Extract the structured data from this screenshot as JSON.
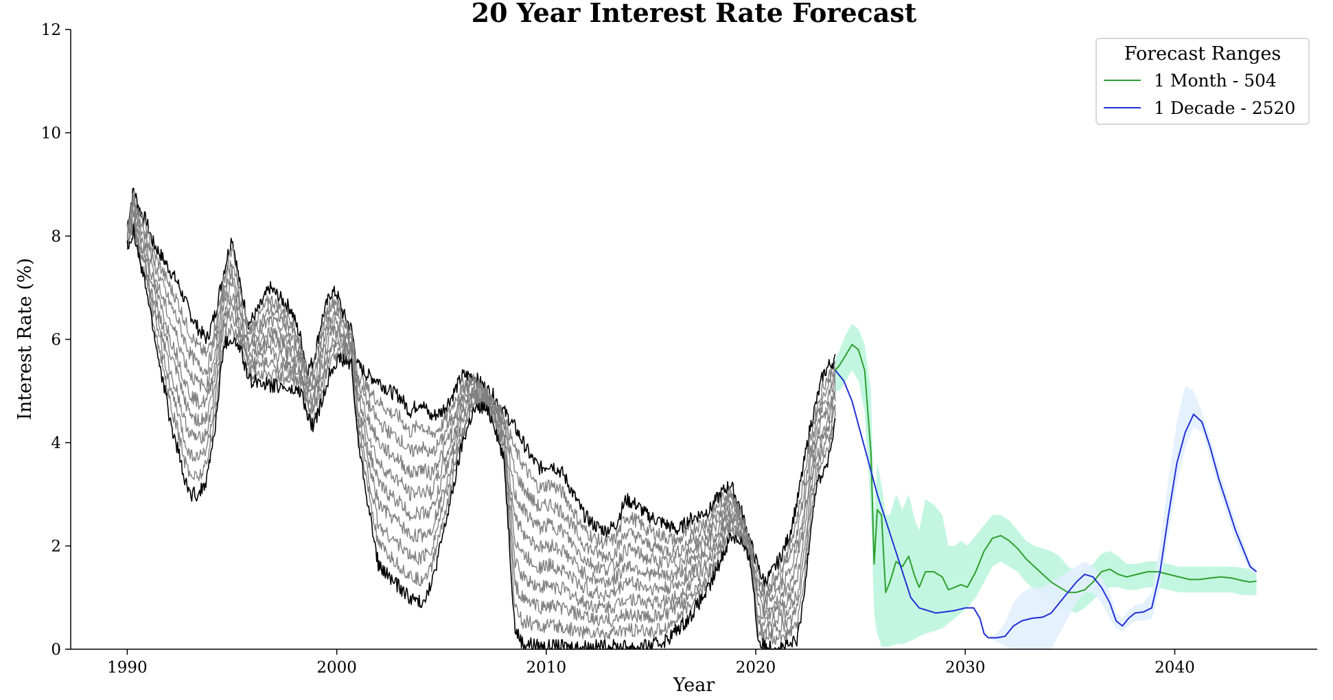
{
  "chart_data": {
    "type": "line",
    "title": "20 Year Interest Rate Forecast",
    "xlabel": "Year",
    "ylabel": "Interest Rate (%)",
    "xlim": [
      1987.3,
      2046.8
    ],
    "ylim": [
      0,
      12
    ],
    "xticks": [
      1990,
      2000,
      2010,
      2020,
      2030,
      2040
    ],
    "yticks": [
      0,
      2,
      4,
      6,
      8,
      10,
      12
    ],
    "grid": false,
    "legend": {
      "title": "Forecast Ranges",
      "placement": "top-right",
      "entries": [
        {
          "label": "1 Month - 504",
          "color": "#2ca02c"
        },
        {
          "label": "1 Decade - 2520",
          "color": "#1f2ed6"
        }
      ]
    },
    "historical": {
      "description_color_dark": "#000000",
      "description_color_light": "#808080",
      "x": [
        1990.0,
        1990.3,
        1990.6,
        1990.9,
        1991.2,
        1991.5,
        1991.8,
        1992.1,
        1992.4,
        1992.7,
        1993.0,
        1993.4,
        1993.8,
        1994.2,
        1994.6,
        1995.0,
        1995.4,
        1995.8,
        1996.3,
        1996.8,
        1997.3,
        1997.8,
        1998.3,
        1998.6,
        1998.9,
        1999.3,
        1999.7,
        2000.0,
        2000.3,
        2000.7,
        2001.0,
        2001.5,
        2002.0,
        2002.5,
        2003.0,
        2003.5,
        2004.0,
        2004.5,
        2005.0,
        2005.5,
        2006.0,
        2006.5,
        2007.0,
        2007.5,
        2008.0,
        2008.5,
        2008.9,
        2009.3,
        2009.7,
        2010.2,
        2010.8,
        2011.3,
        2011.8,
        2012.3,
        2012.8,
        2013.3,
        2013.8,
        2014.3,
        2014.8,
        2015.3,
        2015.8,
        2016.3,
        2016.8,
        2017.3,
        2017.8,
        2018.3,
        2018.8,
        2019.3,
        2019.8,
        2020.1,
        2020.4,
        2020.8,
        2021.2,
        2021.6,
        2022.0,
        2022.3,
        2022.6,
        2022.9,
        2023.2,
        2023.5,
        2023.8
      ],
      "upper": [
        8.2,
        8.9,
        8.5,
        8.3,
        7.9,
        7.7,
        7.5,
        7.3,
        7.1,
        6.8,
        6.5,
        6.2,
        6.0,
        6.5,
        7.3,
        8.0,
        7.0,
        6.3,
        6.6,
        7.0,
        6.8,
        6.6,
        6.0,
        5.4,
        5.6,
        6.4,
        6.9,
        6.9,
        6.5,
        6.2,
        5.5,
        5.3,
        5.2,
        5.0,
        4.9,
        4.6,
        4.8,
        4.5,
        4.6,
        4.9,
        5.3,
        5.3,
        5.1,
        4.9,
        4.6,
        4.3,
        4.0,
        3.7,
        3.5,
        3.6,
        3.4,
        3.0,
        2.6,
        2.4,
        2.3,
        2.4,
        2.9,
        2.8,
        2.6,
        2.5,
        2.4,
        2.3,
        2.5,
        2.6,
        2.7,
        3.0,
        3.2,
        2.7,
        2.0,
        1.6,
        1.3,
        1.5,
        1.8,
        2.2,
        2.9,
        3.6,
        4.3,
        4.8,
        5.3,
        5.5,
        5.6
      ],
      "lower": [
        7.8,
        8.1,
        7.5,
        7.0,
        6.3,
        5.6,
        5.0,
        4.3,
        3.9,
        3.3,
        3.0,
        3.0,
        3.3,
        4.3,
        5.9,
        6.0,
        5.8,
        5.2,
        5.2,
        5.1,
        5.1,
        5.0,
        5.0,
        4.5,
        4.3,
        4.8,
        5.4,
        5.6,
        5.6,
        5.5,
        4.1,
        2.8,
        1.6,
        1.4,
        1.2,
        1.0,
        0.9,
        1.2,
        2.1,
        3.0,
        4.0,
        4.6,
        4.7,
        4.4,
        3.6,
        0.4,
        0.1,
        0.1,
        0.05,
        0.05,
        0.05,
        0.05,
        0.05,
        0.05,
        0.05,
        0.05,
        0.05,
        0.05,
        0.05,
        0.1,
        0.2,
        0.4,
        0.6,
        0.9,
        1.2,
        1.7,
        2.2,
        2.1,
        1.6,
        0.2,
        0.05,
        0.05,
        0.05,
        0.05,
        0.2,
        1.0,
        2.3,
        3.2,
        3.4,
        3.7,
        4.4
      ]
    },
    "series": [
      {
        "name": "1 Month - 504",
        "color": "#2ca02c",
        "band_color": "#b8f5da",
        "x": [
          2023.8,
          2024.0,
          2024.3,
          2024.6,
          2024.9,
          2025.2,
          2025.5,
          2025.65,
          2025.8,
          2026.0,
          2026.2,
          2026.4,
          2026.7,
          2027.0,
          2027.3,
          2027.6,
          2027.8,
          2028.1,
          2028.5,
          2028.9,
          2029.2,
          2029.5,
          2029.8,
          2030.1,
          2030.5,
          2030.9,
          2031.3,
          2031.7,
          2032.1,
          2032.5,
          2032.9,
          2033.3,
          2033.7,
          2034.1,
          2034.5,
          2034.9,
          2035.3,
          2035.7,
          2036.1,
          2036.5,
          2036.9,
          2037.3,
          2037.7,
          2038.2,
          2038.7,
          2039.2,
          2039.7,
          2040.2,
          2040.7,
          2041.2,
          2041.7,
          2042.2,
          2042.7,
          2043.2,
          2043.6,
          2043.9
        ],
        "values": [
          5.4,
          5.5,
          5.7,
          5.9,
          5.8,
          5.4,
          3.8,
          1.65,
          2.7,
          2.6,
          1.1,
          1.3,
          1.7,
          1.6,
          1.8,
          1.4,
          1.2,
          1.5,
          1.5,
          1.4,
          1.15,
          1.2,
          1.25,
          1.2,
          1.5,
          1.9,
          2.15,
          2.2,
          2.1,
          1.95,
          1.75,
          1.6,
          1.45,
          1.3,
          1.2,
          1.1,
          1.1,
          1.15,
          1.3,
          1.5,
          1.55,
          1.45,
          1.4,
          1.45,
          1.5,
          1.5,
          1.45,
          1.4,
          1.35,
          1.35,
          1.38,
          1.4,
          1.38,
          1.33,
          1.3,
          1.32
        ],
        "band_lower": [
          5.0,
          5.0,
          5.2,
          5.4,
          5.2,
          4.6,
          2.6,
          0.7,
          0.3,
          0.05,
          0.05,
          0.05,
          0.1,
          0.1,
          0.15,
          0.2,
          0.25,
          0.3,
          0.35,
          0.4,
          0.5,
          0.6,
          0.7,
          0.8,
          1.0,
          1.3,
          1.6,
          1.7,
          1.6,
          1.5,
          1.3,
          1.15,
          1.0,
          0.9,
          0.8,
          0.75,
          0.7,
          0.8,
          0.95,
          1.1,
          1.2,
          1.2,
          1.15,
          1.15,
          1.2,
          1.2,
          1.15,
          1.1,
          1.1,
          1.1,
          1.1,
          1.1,
          1.1,
          1.05,
          1.05,
          1.05
        ],
        "band_upper": [
          5.6,
          5.8,
          6.1,
          6.3,
          6.2,
          5.9,
          5.0,
          2.6,
          3.6,
          3.2,
          2.6,
          2.6,
          3.0,
          2.7,
          3.0,
          2.5,
          2.3,
          2.9,
          2.8,
          2.6,
          2.0,
          2.0,
          2.1,
          2.0,
          2.2,
          2.4,
          2.6,
          2.6,
          2.5,
          2.3,
          2.1,
          2.0,
          1.95,
          1.9,
          1.8,
          1.6,
          1.5,
          1.55,
          1.65,
          1.85,
          1.9,
          1.8,
          1.65,
          1.65,
          1.7,
          1.7,
          1.65,
          1.6,
          1.6,
          1.6,
          1.6,
          1.6,
          1.6,
          1.58,
          1.55,
          1.55
        ]
      },
      {
        "name": "1 Decade - 2520",
        "color": "#1f2ed6",
        "band_color": "#e2f0fd",
        "x": [
          2023.8,
          2024.2,
          2024.6,
          2025.0,
          2025.4,
          2025.8,
          2026.2,
          2026.6,
          2027.0,
          2027.4,
          2027.8,
          2028.2,
          2028.6,
          2029.0,
          2029.5,
          2030.0,
          2030.4,
          2030.7,
          2030.9,
          2031.1,
          2031.5,
          2031.9,
          2032.3,
          2032.7,
          2033.2,
          2033.7,
          2034.1,
          2034.5,
          2034.9,
          2035.3,
          2035.7,
          2036.1,
          2036.5,
          2036.9,
          2037.2,
          2037.5,
          2037.8,
          2038.1,
          2038.5,
          2038.9,
          2039.3,
          2039.7,
          2040.1,
          2040.5,
          2040.9,
          2041.3,
          2041.7,
          2042.1,
          2042.5,
          2042.9,
          2043.3,
          2043.6,
          2043.9
        ],
        "values": [
          5.4,
          5.2,
          4.8,
          4.2,
          3.6,
          3.0,
          2.5,
          2.0,
          1.5,
          1.0,
          0.8,
          0.75,
          0.7,
          0.72,
          0.75,
          0.8,
          0.8,
          0.6,
          0.3,
          0.22,
          0.22,
          0.25,
          0.45,
          0.55,
          0.6,
          0.62,
          0.7,
          0.9,
          1.1,
          1.3,
          1.45,
          1.4,
          1.2,
          0.9,
          0.55,
          0.45,
          0.6,
          0.7,
          0.72,
          0.8,
          1.5,
          2.6,
          3.6,
          4.2,
          4.55,
          4.4,
          3.9,
          3.3,
          2.8,
          2.3,
          1.9,
          1.6,
          1.5
        ],
        "band_lower": [
          5.4,
          5.2,
          4.8,
          4.2,
          3.6,
          3.0,
          2.5,
          2.0,
          1.5,
          1.0,
          0.8,
          0.75,
          0.7,
          0.72,
          0.75,
          0.8,
          0.8,
          0.6,
          0.3,
          0.22,
          0.15,
          0.05,
          0.0,
          0.0,
          0.0,
          0.0,
          0.0,
          0.3,
          0.6,
          0.9,
          1.1,
          1.1,
          0.9,
          0.6,
          0.4,
          0.35,
          0.45,
          0.55,
          0.55,
          0.6,
          1.2,
          2.2,
          3.2,
          3.9,
          4.3,
          4.2,
          3.7,
          3.1,
          2.6,
          2.1,
          1.75,
          1.5,
          1.45
        ],
        "band_upper": [
          5.4,
          5.2,
          4.8,
          4.2,
          3.6,
          3.0,
          2.5,
          2.0,
          1.5,
          1.0,
          0.8,
          0.75,
          0.7,
          0.72,
          0.75,
          0.8,
          0.8,
          0.6,
          0.3,
          0.22,
          0.3,
          0.5,
          0.9,
          1.1,
          1.2,
          1.2,
          1.3,
          1.4,
          1.5,
          1.6,
          1.7,
          1.6,
          1.4,
          1.1,
          0.7,
          0.6,
          0.75,
          0.85,
          0.9,
          1.1,
          2.0,
          3.3,
          4.4,
          5.1,
          5.0,
          4.6,
          4.1,
          3.5,
          3.0,
          2.5,
          2.05,
          1.7,
          1.55
        ]
      }
    ]
  }
}
